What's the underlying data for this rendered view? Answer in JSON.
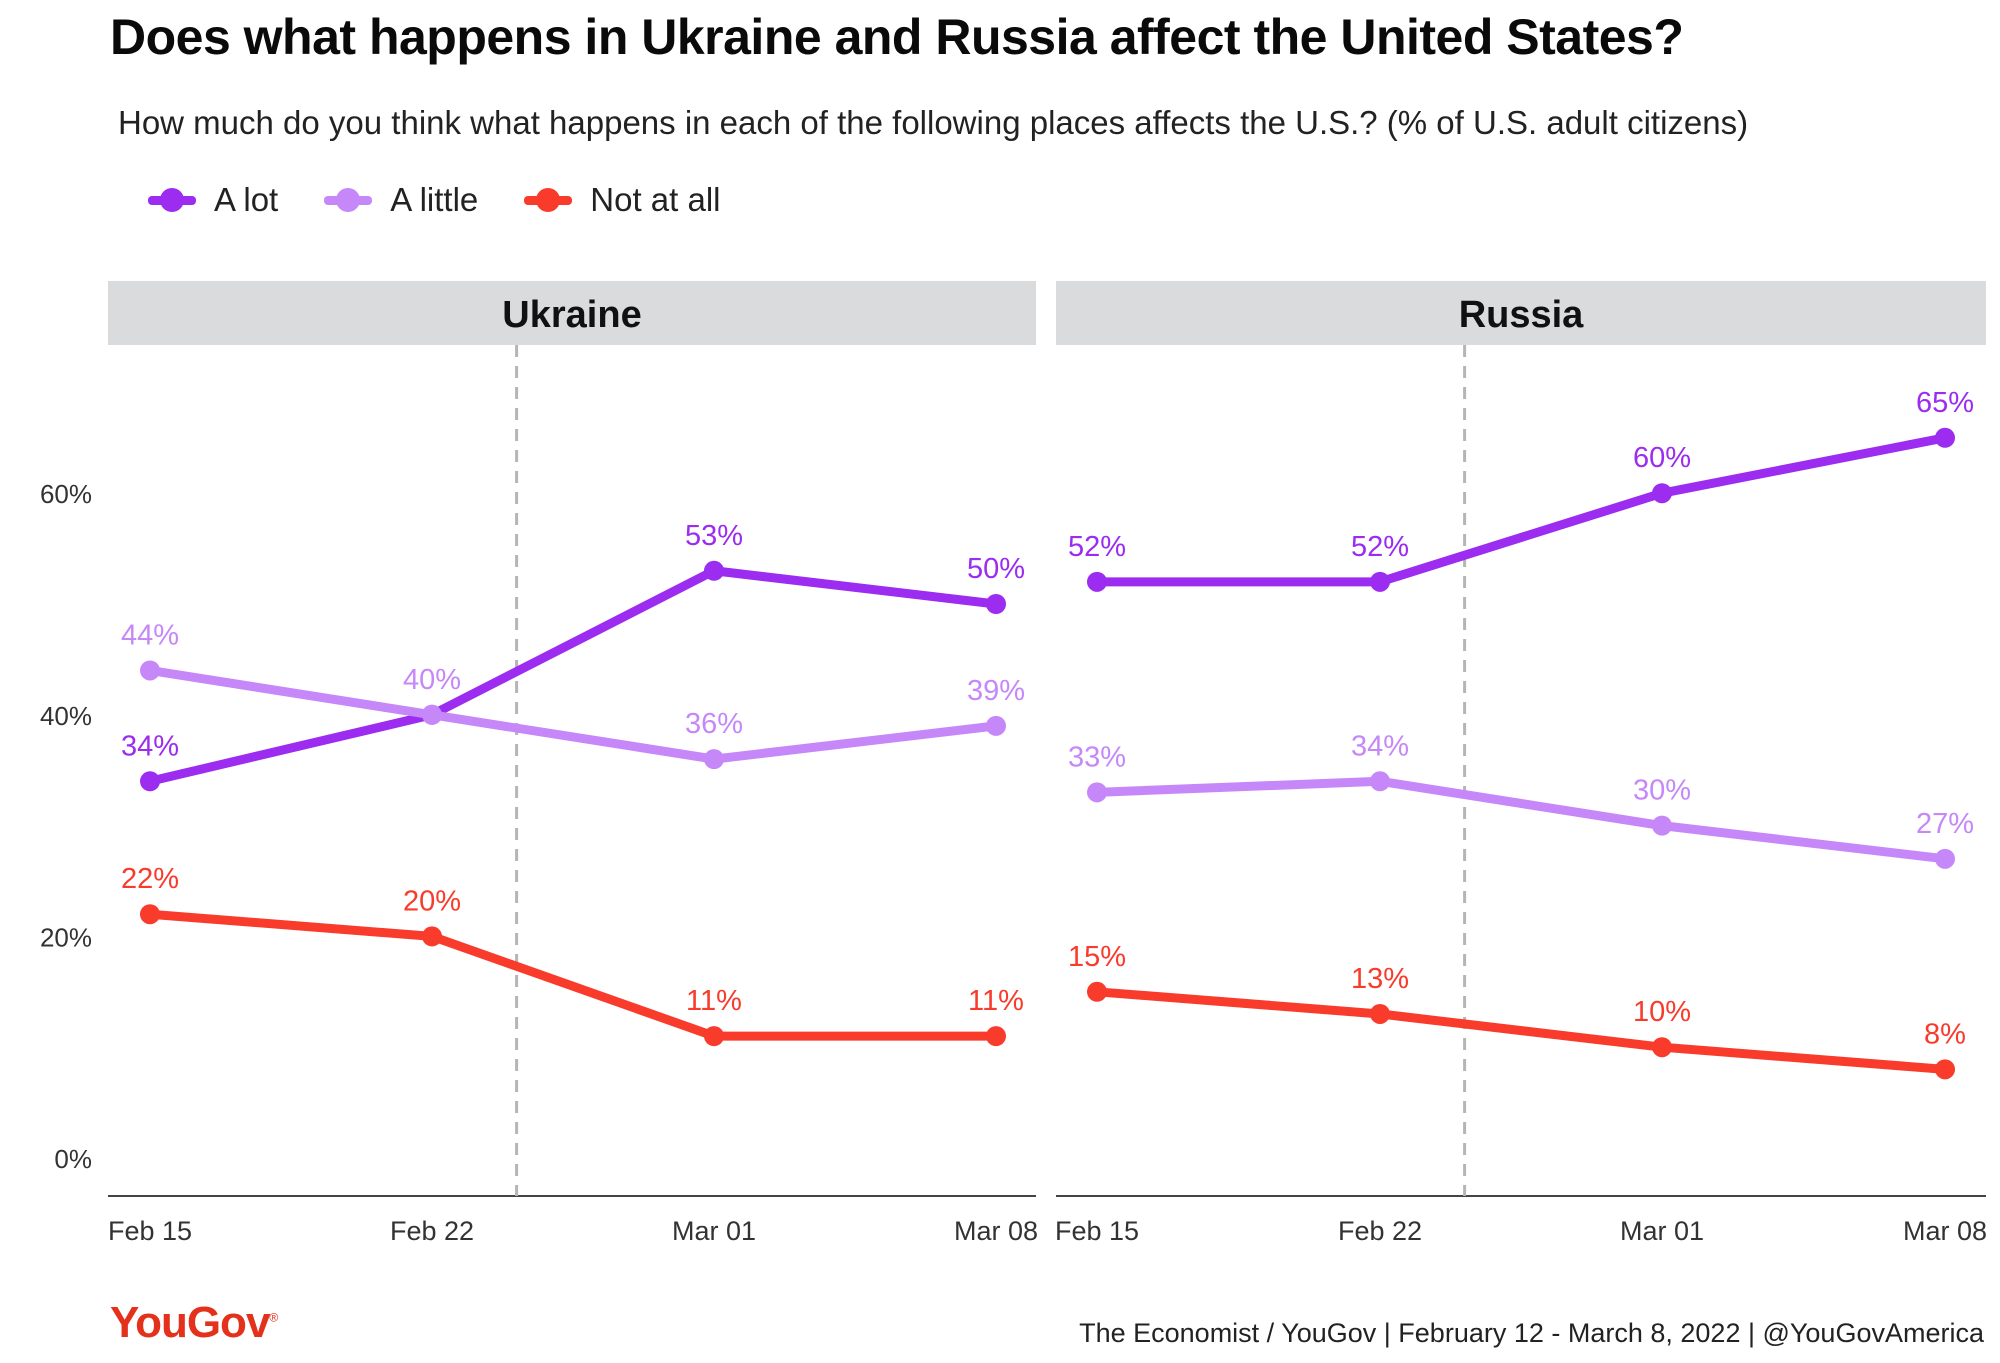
{
  "colors": {
    "a_lot": "#9B2CF0",
    "a_little": "#C688F9",
    "not_at_all": "#F83B2B",
    "panel_header_bg": "#D9DBDC",
    "brand": "#E4311B"
  },
  "legend": {
    "items": [
      {
        "label": "A lot",
        "color": "#9B2CF0"
      },
      {
        "label": "A little",
        "color": "#C688F9"
      },
      {
        "label": "Not at all",
        "color": "#F83B2B"
      }
    ]
  },
  "chart_data": {
    "type": "line",
    "title": "Does what happens in Ukraine and Russia affect the United States?",
    "subtitle": "How much do you think what happens in each of the following places affects the U.S.? (% of U.S. adult citizens)",
    "categories": [
      "Feb 15",
      "Feb 22",
      "Mar 01",
      "Mar 08"
    ],
    "ylim": [
      0,
      70
    ],
    "yticks": [
      0,
      20,
      40,
      60
    ],
    "ytick_labels": [
      "0%",
      "20%",
      "40%",
      "60%"
    ],
    "grid": false,
    "legend_position": "top-left",
    "reference_line": {
      "between": [
        "Feb 22",
        "Mar 01"
      ],
      "position": 0.3,
      "style": "dashed"
    },
    "panels": [
      {
        "title": "Ukraine",
        "series": [
          {
            "name": "A lot",
            "values": [
              34,
              40,
              53,
              50
            ],
            "labels": [
              "34%",
              "",
              "53%",
              "50%"
            ]
          },
          {
            "name": "A little",
            "values": [
              44,
              40,
              36,
              39
            ],
            "labels": [
              "44%",
              "40%",
              "36%",
              "39%"
            ]
          },
          {
            "name": "Not at all",
            "values": [
              22,
              20,
              11,
              11
            ],
            "labels": [
              "22%",
              "20%",
              "11%",
              "11%"
            ]
          }
        ]
      },
      {
        "title": "Russia",
        "series": [
          {
            "name": "A lot",
            "values": [
              52,
              52,
              60,
              65
            ],
            "labels": [
              "52%",
              "52%",
              "60%",
              "65%"
            ]
          },
          {
            "name": "A little",
            "values": [
              33,
              34,
              30,
              27
            ],
            "labels": [
              "33%",
              "34%",
              "30%",
              "27%"
            ]
          },
          {
            "name": "Not at all",
            "values": [
              15,
              13,
              10,
              8
            ],
            "labels": [
              "15%",
              "13%",
              "10%",
              "8%"
            ]
          }
        ]
      }
    ]
  },
  "footer": {
    "logo": "YouGov",
    "logo_mark": "®",
    "source": "The Economist / YouGov | February 12 - March 8, 2022 | @YouGovAmerica"
  }
}
